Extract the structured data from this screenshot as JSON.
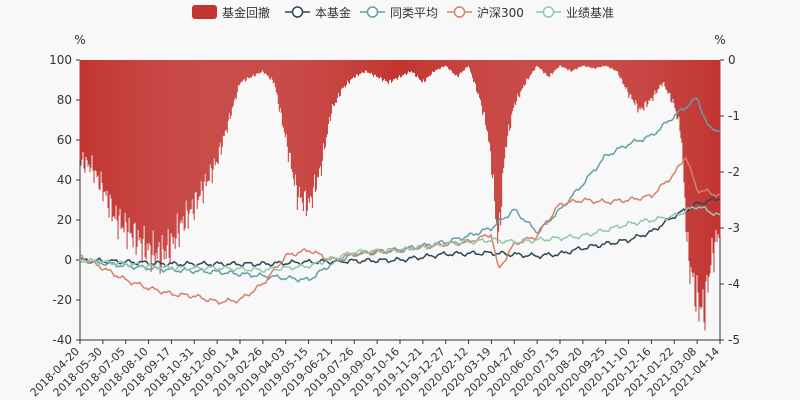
{
  "chart_data": {
    "type": "line",
    "legend": [
      "基金回撤",
      "本基金",
      "同类平均",
      "沪深300",
      "业绩基准"
    ],
    "legend_position": "top-center",
    "left_axis": {
      "unit": "%",
      "ticks": [
        "100",
        "80",
        "60",
        "40",
        "20",
        "0",
        "-20",
        "-40"
      ],
      "ylim": [
        -40,
        100
      ]
    },
    "right_axis": {
      "unit": "%",
      "ticks": [
        "0",
        "-1",
        "-2",
        "-3",
        "-4",
        "-5"
      ],
      "ylim": [
        -5,
        0
      ]
    },
    "x_ticks": [
      "2018-04-20",
      "2018-05-30",
      "2018-07-05",
      "2018-08-10",
      "2018-09-17",
      "2018-10-31",
      "2018-12-06",
      "2019-01-14",
      "2019-02-26",
      "2019-04-03",
      "2019-05-15",
      "2019-06-21",
      "2019-07-26",
      "2019-09-02",
      "2019-10-16",
      "2019-11-21",
      "2019-12-27",
      "2020-02-12",
      "2020-03-19",
      "2020-04-27",
      "2020-06-05",
      "2020-07-15",
      "2020-08-20",
      "2020-09-25",
      "2020-11-10",
      "2020-12-16",
      "2021-01-22",
      "2021-03-08",
      "2021-04-14"
    ],
    "series": [
      {
        "name": "本基金",
        "color": "#2f4554",
        "x": [
          0,
          2,
          4,
          6,
          8,
          10,
          12,
          14,
          16,
          18,
          20,
          21,
          22,
          23,
          24,
          25,
          26,
          27,
          28
        ],
        "values": [
          0,
          -1,
          -2,
          -2,
          -2,
          -1,
          -0.5,
          0,
          3,
          3.5,
          2,
          3,
          6,
          8,
          10,
          14,
          22,
          28,
          31
        ]
      },
      {
        "name": "同类平均",
        "color": "#61a0a8",
        "x": [
          0,
          2,
          4,
          6,
          8,
          10,
          11,
          12,
          14,
          16,
          17,
          18,
          19,
          20,
          21,
          22,
          23,
          24,
          25,
          26,
          27,
          27.5,
          28
        ],
        "values": [
          0,
          -3,
          -5,
          -6,
          -8,
          -10,
          -2,
          3,
          5,
          9,
          12,
          16,
          25,
          14,
          25,
          38,
          52,
          58,
          62,
          72,
          81,
          66,
          65
        ]
      },
      {
        "name": "沪深300",
        "color": "#d48265",
        "x": [
          0,
          1,
          2,
          3,
          4,
          5,
          6,
          7,
          8,
          9,
          10,
          11,
          12,
          14,
          16,
          17,
          18,
          18.3,
          19,
          20,
          21,
          22,
          23,
          24,
          25,
          26,
          26.5,
          27,
          27.5,
          28
        ],
        "values": [
          2,
          -4,
          -10,
          -14,
          -17,
          -18,
          -21,
          -20,
          -12,
          2,
          5,
          0,
          3,
          5,
          8,
          9,
          13,
          -5,
          8,
          12,
          28,
          30,
          29,
          30,
          32,
          43,
          52,
          35,
          34,
          32
        ]
      },
      {
        "name": "业绩基准",
        "color": "#91c7ae",
        "x": [
          0,
          2,
          4,
          6,
          8,
          10,
          12,
          14,
          16,
          18,
          19,
          20,
          22,
          24,
          26,
          27,
          28
        ],
        "values": [
          0,
          -2,
          -4,
          -4,
          -5,
          -3,
          4,
          5,
          8,
          10,
          9,
          10,
          12,
          18,
          22,
          27,
          22
        ]
      }
    ],
    "drawdown": {
      "name": "基金回撤",
      "color": "#c23531",
      "x": [
        0,
        0.5,
        1,
        1.5,
        2,
        2.5,
        3,
        3.5,
        4,
        4.5,
        5,
        5.5,
        6,
        6.5,
        7,
        7.5,
        8,
        8.5,
        9,
        9.5,
        10,
        10.5,
        11,
        11.5,
        12,
        12.5,
        13,
        13.5,
        14,
        14.5,
        15,
        15.5,
        16,
        16.5,
        17,
        17.5,
        17.8,
        18,
        18.3,
        18.6,
        19,
        19.5,
        20,
        20.5,
        21,
        21.5,
        22,
        22.5,
        23,
        23.5,
        24,
        24.5,
        25,
        25.5,
        26,
        26.3,
        26.6,
        27,
        27.3,
        27.6,
        28
      ],
      "values": [
        -1.8,
        -1.9,
        -2.3,
        -2.8,
        -3.0,
        -3.2,
        -3.4,
        -3.5,
        -3.3,
        -2.9,
        -2.6,
        -2.2,
        -1.8,
        -1.1,
        -0.4,
        -0.3,
        -0.2,
        -0.4,
        -1.4,
        -2.4,
        -2.6,
        -2.0,
        -0.9,
        -0.5,
        -0.3,
        -0.2,
        -0.3,
        -0.4,
        -0.3,
        -0.2,
        -0.4,
        -0.2,
        -0.1,
        -0.3,
        -0.1,
        -0.7,
        -1.2,
        -1.8,
        -3.3,
        -1.6,
        -0.8,
        -0.4,
        -0.1,
        -0.3,
        -0.1,
        -0.2,
        -0.1,
        -0.15,
        -0.1,
        -0.2,
        -0.6,
        -0.9,
        -0.7,
        -0.4,
        -0.8,
        -1.3,
        -3.5,
        -4.3,
        -4.5,
        -3.6,
        -3.0
      ]
    }
  }
}
